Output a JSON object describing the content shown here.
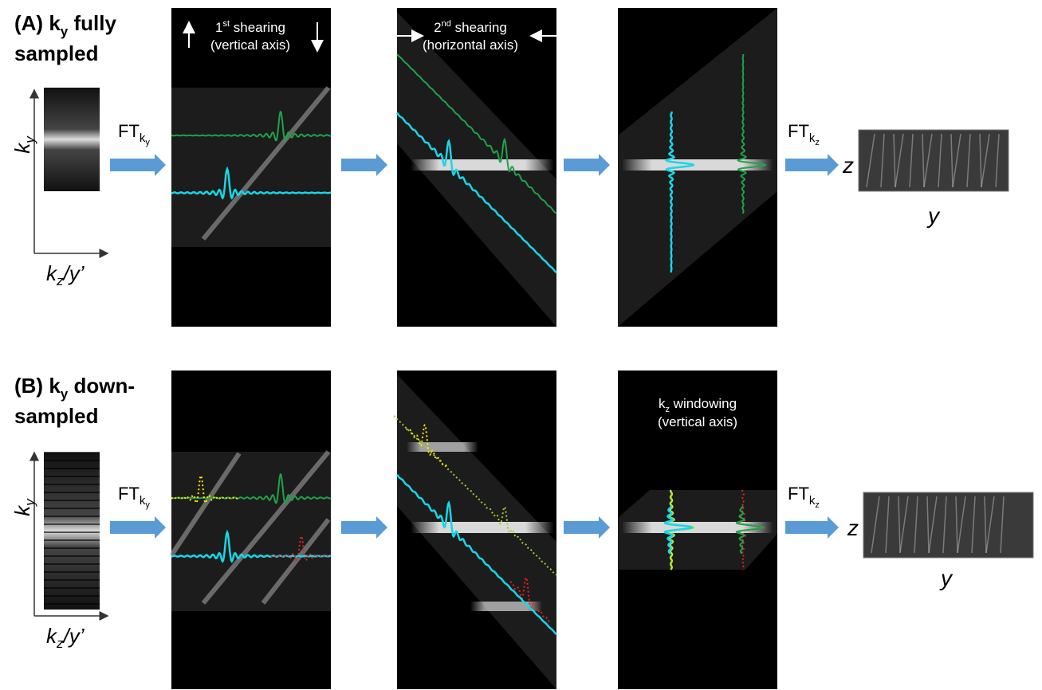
{
  "panel_a": {
    "heading_1": "(A) k",
    "heading_1_sub": "y",
    "heading_1_rest": " fully",
    "heading_2": "sampled",
    "y_axis": "k",
    "y_axis_sub": "y",
    "x_axis": "k",
    "x_axis_sub": "z",
    "x_axis_rest": "/y’",
    "ft_1": "FT",
    "ft_1_sub": "k",
    "ft_1_subsub": "y",
    "step_1": {
      "number": "1",
      "sup": "st",
      "text": "  shearing",
      "line2": "(vertical axis)"
    },
    "step_2": {
      "number": "2",
      "sup": "nd",
      "text": "  shearing",
      "line2": "(horizontal axis)"
    },
    "ft_2": "FT",
    "ft_2_sub": "k",
    "ft_2_subsub": "z",
    "result_z": "z",
    "result_y": "y"
  },
  "panel_b": {
    "heading_1": "(B) k",
    "heading_1_sub": "y",
    "heading_1_rest": " down-",
    "heading_2": "sampled",
    "y_axis": "k",
    "y_axis_sub": "y",
    "x_axis": "k",
    "x_axis_sub": "z",
    "x_axis_rest": "/y’",
    "ft_1": "FT",
    "ft_1_sub": "k",
    "ft_1_subsub": "y",
    "step_3": {
      "text": "k",
      "sub": "z",
      "rest": " windowing",
      "line2": "(vertical axis)"
    },
    "ft_2": "FT",
    "ft_2_sub": "k",
    "ft_2_subsub": "z",
    "result_z": "z",
    "result_y": "y"
  }
}
